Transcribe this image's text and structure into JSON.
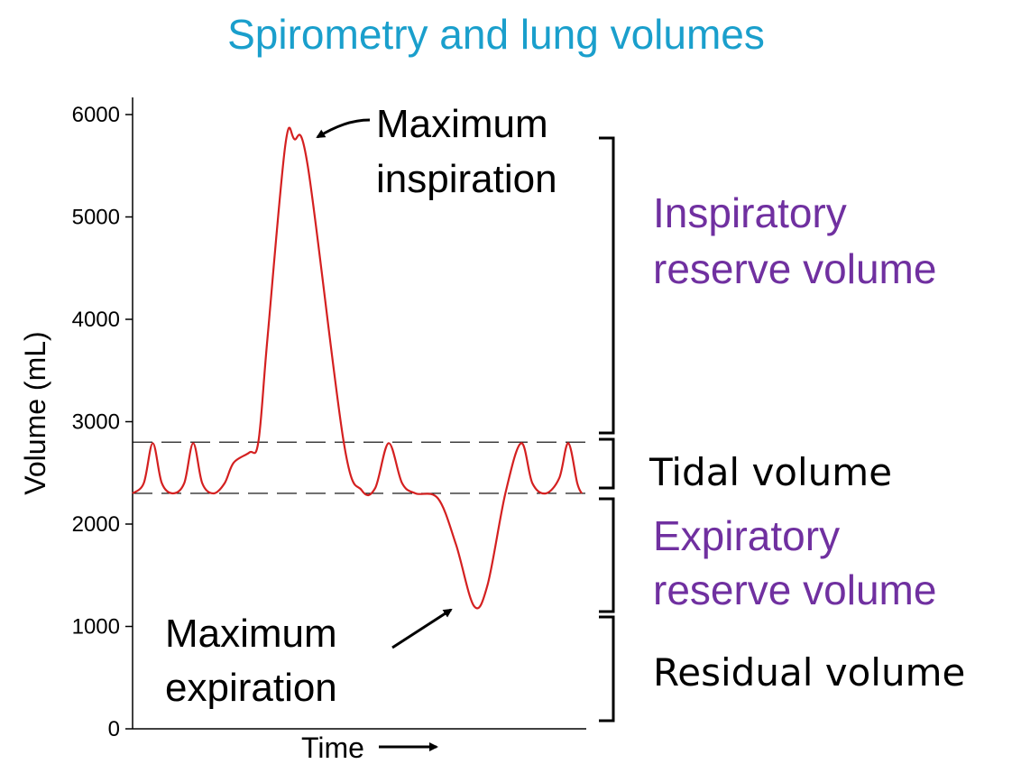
{
  "chart_data": {
    "type": "line",
    "title": "Spirometry and lung volumes",
    "xlabel": "Time",
    "ylabel": "Volume (mL)",
    "ylim": [
      0,
      6000
    ],
    "y_ticks": [
      0,
      1000,
      2000,
      3000,
      4000,
      5000,
      6000
    ],
    "reference_lines": [
      2300,
      2800
    ],
    "series": [
      {
        "color": "#d42020",
        "points": [
          [
            0.0,
            2300
          ],
          [
            0.025,
            2400
          ],
          [
            0.045,
            2790
          ],
          [
            0.065,
            2400
          ],
          [
            0.09,
            2300
          ],
          [
            0.115,
            2400
          ],
          [
            0.135,
            2790
          ],
          [
            0.155,
            2400
          ],
          [
            0.18,
            2300
          ],
          [
            0.205,
            2400
          ],
          [
            0.225,
            2600
          ],
          [
            0.26,
            2700
          ],
          [
            0.28,
            2800
          ],
          [
            0.3,
            3800
          ],
          [
            0.34,
            5700
          ],
          [
            0.36,
            5760
          ],
          [
            0.39,
            5500
          ],
          [
            0.47,
            2800
          ],
          [
            0.51,
            2330
          ],
          [
            0.54,
            2350
          ],
          [
            0.57,
            2790
          ],
          [
            0.6,
            2400
          ],
          [
            0.63,
            2300
          ],
          [
            0.68,
            2250
          ],
          [
            0.72,
            1800
          ],
          [
            0.76,
            1200
          ],
          [
            0.79,
            1400
          ],
          [
            0.83,
            2300
          ],
          [
            0.865,
            2790
          ],
          [
            0.89,
            2400
          ],
          [
            0.92,
            2300
          ],
          [
            0.95,
            2450
          ],
          [
            0.97,
            2790
          ],
          [
            0.99,
            2400
          ],
          [
            1.0,
            2300
          ]
        ]
      }
    ],
    "annotations": [
      {
        "text": [
          "Maximum",
          "inspiration"
        ],
        "color": "#000000"
      },
      {
        "text": [
          "Maximum",
          "expiration"
        ],
        "color": "#000000"
      }
    ],
    "regions": [
      {
        "label": [
          "Inspiratory",
          "reserve volume"
        ],
        "from": 2800,
        "to": 5750,
        "color": "#7030a0"
      },
      {
        "label": [
          "Tidal volume"
        ],
        "from": 2300,
        "to": 2800,
        "color": "#000000"
      },
      {
        "label": [
          "Expiratory",
          "reserve volume"
        ],
        "from": 1150,
        "to": 2250,
        "color": "#7030a0"
      },
      {
        "label": [
          "Residual volume"
        ],
        "from": 0,
        "to": 1150,
        "color": "#000000"
      }
    ],
    "colors": {
      "title": "#1a9fcc",
      "curve": "#d42020",
      "reserve_label": "#7030a0",
      "ink": "#000000"
    }
  }
}
